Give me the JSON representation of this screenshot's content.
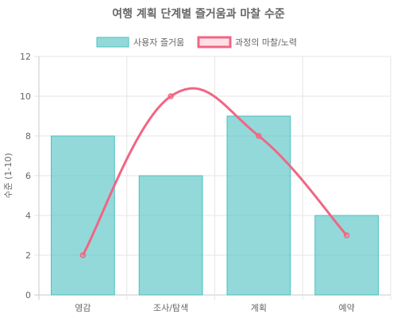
{
  "chart_data": {
    "type": "bar",
    "title": "여행 계획 단계별 즐거움과 마찰 수준",
    "categories": [
      "영감",
      "조사/탐색",
      "계획",
      "예약"
    ],
    "ylabel": "수준 (1-10)",
    "ylim": [
      0,
      12
    ],
    "yticks": [
      "0",
      "2",
      "4",
      "6",
      "8",
      "10",
      "12"
    ],
    "grid": true,
    "legend_position": "top",
    "series": [
      {
        "name": "사용자 즐거움",
        "kind": "bar",
        "values": [
          8,
          6,
          9,
          4
        ],
        "color": "#4bc0c0",
        "fill": "rgba(75,192,192,0.6)"
      },
      {
        "name": "과정의 마찰/노력",
        "kind": "line",
        "values": [
          2,
          10,
          8,
          3
        ],
        "color": "#f06684",
        "fill": "rgba(255,99,132,0.2)"
      }
    ]
  }
}
